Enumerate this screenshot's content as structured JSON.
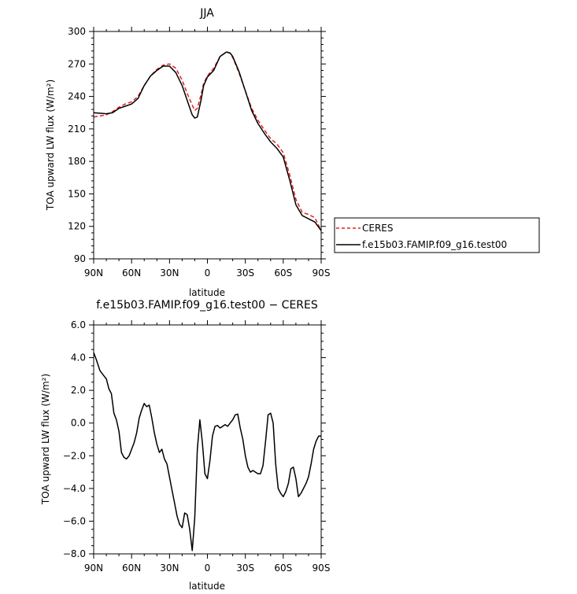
{
  "chart_data": [
    {
      "type": "line",
      "title": "JJA",
      "xlabel": "latitude",
      "ylabel": "TOA upward LW flux (W/m²)",
      "ylim": [
        90,
        300
      ],
      "xlim": [
        90,
        -90
      ],
      "yticks": [
        90,
        120,
        150,
        180,
        210,
        240,
        270,
        300
      ],
      "ytick_labels": [
        "90",
        "120",
        "150",
        "180",
        "210",
        "240",
        "270",
        "300"
      ],
      "xticks": [
        90,
        60,
        30,
        0,
        -30,
        -60,
        -90
      ],
      "xtick_labels": [
        "90N",
        "60N",
        "30N",
        "0",
        "30S",
        "60S",
        "90S"
      ],
      "legend": "right",
      "series": [
        {
          "name": "CERES",
          "color": "#e0201e",
          "dash": "dashed",
          "x": [
            90,
            80,
            75,
            70,
            65,
            60,
            55,
            50,
            45,
            40,
            35,
            30,
            25,
            20,
            15,
            12,
            10,
            8,
            5,
            3,
            0,
            -5,
            -10,
            -15,
            -18,
            -20,
            -25,
            -30,
            -35,
            -40,
            -45,
            -50,
            -55,
            -60,
            -65,
            -70,
            -75,
            -80,
            -85,
            -90
          ],
          "y": [
            221,
            223,
            226,
            230,
            233,
            235,
            240,
            250,
            259,
            265,
            269,
            270,
            266,
            255,
            240,
            232,
            227,
            229,
            242,
            252,
            259,
            266,
            277,
            281,
            280,
            276,
            262,
            245,
            229,
            218,
            209,
            201,
            196,
            188,
            168,
            145,
            133,
            131,
            128,
            116
          ]
        },
        {
          "name": "f.e15b03.FAMIP.f09_g16.test00",
          "color": "#000000",
          "dash": "solid",
          "x": [
            90,
            80,
            75,
            70,
            65,
            60,
            55,
            50,
            45,
            40,
            35,
            30,
            25,
            20,
            15,
            12,
            10,
            8,
            5,
            3,
            0,
            -5,
            -10,
            -15,
            -18,
            -20,
            -25,
            -30,
            -35,
            -40,
            -45,
            -50,
            -55,
            -60,
            -65,
            -70,
            -75,
            -80,
            -85,
            -90
          ],
          "y": [
            225,
            224,
            225,
            229,
            231,
            233,
            238,
            250,
            259,
            264,
            268,
            268,
            262,
            250,
            233,
            223,
            220,
            221,
            237,
            250,
            258,
            264,
            277,
            281,
            280,
            277,
            263,
            245,
            227,
            215,
            206,
            198,
            192,
            184,
            163,
            140,
            130,
            127,
            124,
            116
          ]
        }
      ]
    },
    {
      "type": "line",
      "title": "f.e15b03.FAMIP.f09_g16.test00 − CERES",
      "xlabel": "latitude",
      "ylabel": "TOA upward LW flux (W/m²)",
      "ylim": [
        -8.0,
        6.0
      ],
      "xlim": [
        90,
        -90
      ],
      "yticks": [
        -8,
        -6,
        -4,
        -2,
        0,
        2,
        4,
        6
      ],
      "ytick_labels": [
        "−8.0",
        "−6.0",
        "−4.0",
        "−2.0",
        "0.0",
        "2.0",
        "4.0",
        "6.0"
      ],
      "xticks": [
        90,
        60,
        30,
        0,
        -30,
        -60,
        -90
      ],
      "xtick_labels": [
        "90N",
        "60N",
        "30N",
        "0",
        "30S",
        "60S",
        "90S"
      ],
      "series": [
        {
          "name": "",
          "color": "#000000",
          "dash": "solid",
          "x": [
            90,
            88,
            85,
            82,
            80,
            78,
            76,
            74,
            72,
            70,
            68,
            66,
            64,
            62,
            60,
            58,
            56,
            54,
            52,
            50,
            48,
            46,
            44,
            42,
            40,
            38,
            36,
            34,
            32,
            30,
            28,
            26,
            24,
            22,
            20,
            18,
            16,
            14,
            12,
            10,
            8,
            6,
            4,
            2,
            0,
            -2,
            -4,
            -6,
            -8,
            -10,
            -12,
            -14,
            -16,
            -18,
            -20,
            -22,
            -24,
            -26,
            -28,
            -30,
            -32,
            -34,
            -36,
            -38,
            -40,
            -42,
            -44,
            -46,
            -48,
            -50,
            -52,
            -54,
            -56,
            -58,
            -60,
            -62,
            -64,
            -66,
            -68,
            -70,
            -72,
            -74,
            -76,
            -78,
            -80,
            -82,
            -84,
            -86,
            -88,
            -90
          ],
          "y": [
            4.3,
            3.9,
            3.2,
            2.9,
            2.7,
            2.1,
            1.8,
            0.6,
            0.2,
            -0.5,
            -1.8,
            -2.1,
            -2.2,
            -2.0,
            -1.6,
            -1.2,
            -0.6,
            0.3,
            0.8,
            1.2,
            1.0,
            1.1,
            0.3,
            -0.6,
            -1.3,
            -1.8,
            -1.6,
            -2.2,
            -2.5,
            -3.3,
            -4.1,
            -4.9,
            -5.7,
            -6.2,
            -6.4,
            -5.5,
            -5.6,
            -6.5,
            -7.8,
            -5.8,
            -1.6,
            0.2,
            -1.2,
            -3.1,
            -3.4,
            -2.3,
            -0.8,
            -0.2,
            -0.15,
            -0.3,
            -0.2,
            -0.1,
            -0.2,
            0.0,
            0.2,
            0.5,
            0.55,
            -0.3,
            -1.0,
            -2.0,
            -2.7,
            -3.0,
            -2.9,
            -3.0,
            -3.1,
            -3.1,
            -2.6,
            -1.1,
            0.5,
            0.6,
            0.0,
            -2.5,
            -4.0,
            -4.3,
            -4.5,
            -4.2,
            -3.7,
            -2.8,
            -2.7,
            -3.4,
            -4.5,
            -4.3,
            -4.0,
            -3.7,
            -3.3,
            -2.5,
            -1.6,
            -1.1,
            -0.8,
            -0.8
          ]
        }
      ]
    }
  ]
}
